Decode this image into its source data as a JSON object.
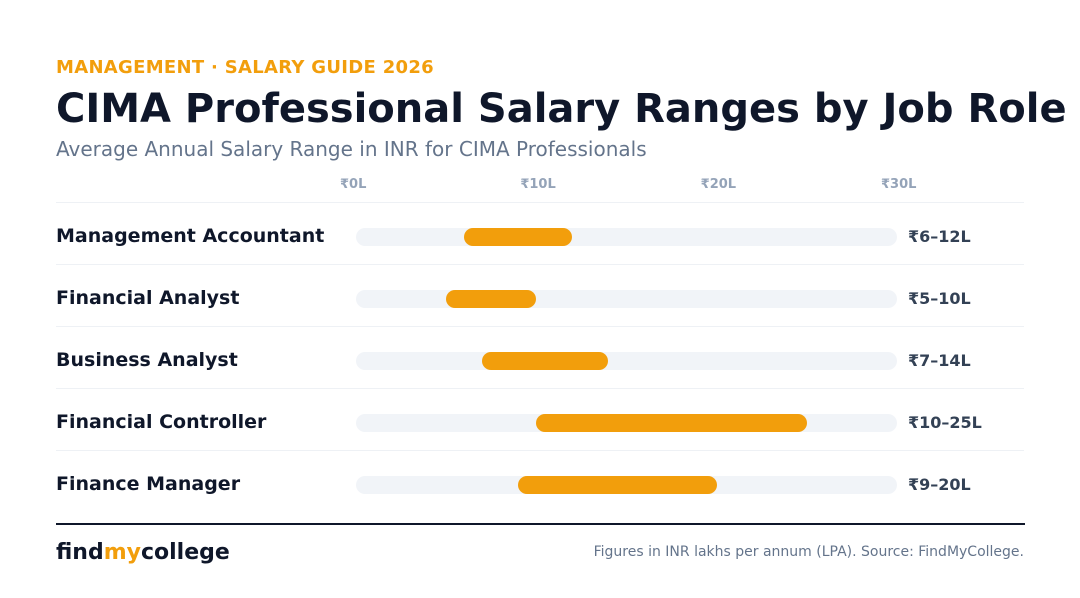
{
  "header": {
    "kicker": "MANAGEMENT · SALARY GUIDE 2026",
    "title": "CIMA Professional Salary Ranges by Job Role",
    "subtitle": "Average Annual Salary Range in INR for CIMA Professionals"
  },
  "chart_data": {
    "type": "bar",
    "orientation": "horizontal-range",
    "title": "CIMA Professional Salary Ranges by Job Role",
    "subtitle": "Average Annual Salary Range in INR for CIMA Professionals",
    "x_ticks": [
      "₹0L",
      "₹10L",
      "₹20L",
      "₹30L"
    ],
    "tick_values": [
      0,
      10,
      20,
      30
    ],
    "xlim": [
      0,
      30
    ],
    "grid": false,
    "bar_color": "#f29e0c",
    "track_color": "#f1f4f8",
    "rows": [
      {
        "label": "Management Accountant",
        "min": 6,
        "max": 12,
        "range_label": "₹6–12L"
      },
      {
        "label": "Financial Analyst",
        "min": 5,
        "max": 10,
        "range_label": "₹5–10L"
      },
      {
        "label": "Business Analyst",
        "min": 7,
        "max": 14,
        "range_label": "₹7–14L"
      },
      {
        "label": "Financial Controller",
        "min": 10,
        "max": 25,
        "range_label": "₹10–25L"
      },
      {
        "label": "Finance Manager",
        "min": 9,
        "max": 20,
        "range_label": "₹9–20L"
      }
    ]
  },
  "footer": {
    "logo_part1": "find",
    "logo_part2": "my",
    "logo_part3": "college",
    "source": "Figures in INR lakhs per annum (LPA). Source: FindMyCollege."
  },
  "colors": {
    "accent": "#f29e0c",
    "text_dark": "#0f172a",
    "text_muted": "#64748b"
  }
}
